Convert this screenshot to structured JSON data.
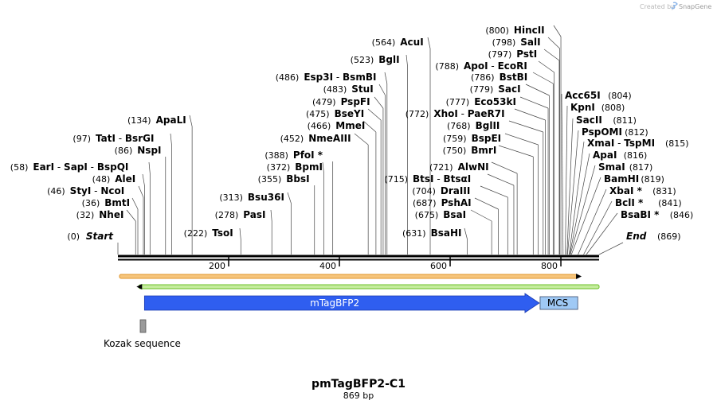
{
  "watermark": {
    "prefix": "Created by",
    "brand": "SnapGene"
  },
  "map": {
    "title": "pmTagBFP2-C1",
    "length_label": "869 bp",
    "length_bp": 869,
    "start_label": "Start",
    "end_label": "End",
    "start_pos": "(0)",
    "end_pos": "(869)",
    "ticks": [
      "200",
      "400",
      "600",
      "800"
    ],
    "tick_values": [
      200,
      400,
      600,
      800
    ]
  },
  "features": {
    "mtagbfp2": {
      "label": "mTagBFP2",
      "start": 48,
      "end": 761,
      "color": "#2f5ef0"
    },
    "mcs": {
      "label": "MCS",
      "start": 761,
      "end": 829,
      "color": "#9fc9f5"
    },
    "kozak": {
      "label": "Kozak sequence",
      "start": 40,
      "end": 52,
      "color": "#9a9a9a"
    },
    "orange_orf": {
      "start": 0,
      "end": 836,
      "color": "#f0a03c"
    },
    "green_orf": {
      "start": 35,
      "end": 869,
      "color": "#6cc02a"
    }
  },
  "sites": [
    {
      "pos": 32,
      "pos_label": "(32)",
      "names": [
        "NheI"
      ]
    },
    {
      "pos": 36,
      "pos_label": "(36)",
      "names": [
        "BmtI"
      ]
    },
    {
      "pos": 46,
      "pos_label": "(46)",
      "names": [
        "StyI",
        "NcoI"
      ]
    },
    {
      "pos": 48,
      "pos_label": "(48)",
      "names": [
        "AleI"
      ]
    },
    {
      "pos": 58,
      "pos_label": "(58)",
      "names": [
        "EarI",
        "SapI",
        "BspQI"
      ]
    },
    {
      "pos": 86,
      "pos_label": "(86)",
      "names": [
        "NspI"
      ]
    },
    {
      "pos": 97,
      "pos_label": "(97)",
      "names": [
        "TatI",
        "BsrGI"
      ]
    },
    {
      "pos": 134,
      "pos_label": "(134)",
      "names": [
        "ApaLI"
      ]
    },
    {
      "pos": 222,
      "pos_label": "(222)",
      "names": [
        "TsoI"
      ]
    },
    {
      "pos": 278,
      "pos_label": "(278)",
      "names": [
        "PasI"
      ]
    },
    {
      "pos": 313,
      "pos_label": "(313)",
      "names": [
        "Bsu36I"
      ]
    },
    {
      "pos": 355,
      "pos_label": "(355)",
      "names": [
        "BbsI"
      ]
    },
    {
      "pos": 372,
      "pos_label": "(372)",
      "names": [
        "BpmI"
      ]
    },
    {
      "pos": 388,
      "pos_label": "(388)",
      "names": [
        "PfoI *"
      ]
    },
    {
      "pos": 452,
      "pos_label": "(452)",
      "names": [
        "NmeAIII"
      ]
    },
    {
      "pos": 466,
      "pos_label": "(466)",
      "names": [
        "MmeI"
      ]
    },
    {
      "pos": 475,
      "pos_label": "(475)",
      "names": [
        "BseYI"
      ]
    },
    {
      "pos": 479,
      "pos_label": "(479)",
      "names": [
        "PspFI"
      ]
    },
    {
      "pos": 483,
      "pos_label": "(483)",
      "names": [
        "StuI"
      ]
    },
    {
      "pos": 486,
      "pos_label": "(486)",
      "names": [
        "Esp3I",
        "BsmBI"
      ]
    },
    {
      "pos": 523,
      "pos_label": "(523)",
      "names": [
        "BglI"
      ]
    },
    {
      "pos": 564,
      "pos_label": "(564)",
      "names": [
        "AcuI"
      ]
    },
    {
      "pos": 631,
      "pos_label": "(631)",
      "names": [
        "BsaHI"
      ]
    },
    {
      "pos": 675,
      "pos_label": "(675)",
      "names": [
        "BsaI"
      ]
    },
    {
      "pos": 687,
      "pos_label": "(687)",
      "names": [
        "PshAI"
      ]
    },
    {
      "pos": 704,
      "pos_label": "(704)",
      "names": [
        "DraIII"
      ]
    },
    {
      "pos": 715,
      "pos_label": "(715)",
      "names": [
        "BtsI",
        "BtsαI"
      ]
    },
    {
      "pos": 721,
      "pos_label": "(721)",
      "names": [
        "AlwNI"
      ]
    },
    {
      "pos": 750,
      "pos_label": "(750)",
      "names": [
        "BmrI"
      ]
    },
    {
      "pos": 759,
      "pos_label": "(759)",
      "names": [
        "BspEI"
      ]
    },
    {
      "pos": 768,
      "pos_label": "(768)",
      "names": [
        "BglII"
      ]
    },
    {
      "pos": 772,
      "pos_label": "(772)",
      "names": [
        "XhoI",
        "PaeR7I"
      ]
    },
    {
      "pos": 777,
      "pos_label": "(777)",
      "names": [
        "Eco53kI"
      ]
    },
    {
      "pos": 779,
      "pos_label": "(779)",
      "names": [
        "SacI"
      ]
    },
    {
      "pos": 786,
      "pos_label": "(786)",
      "names": [
        "BstBI"
      ]
    },
    {
      "pos": 788,
      "pos_label": "(788)",
      "names": [
        "ApoI",
        "EcoRI"
      ]
    },
    {
      "pos": 797,
      "pos_label": "(797)",
      "names": [
        "PstI"
      ]
    },
    {
      "pos": 798,
      "pos_label": "(798)",
      "names": [
        "SalI"
      ]
    },
    {
      "pos": 800,
      "pos_label": "(800)",
      "names": [
        "HincII"
      ]
    },
    {
      "pos": 804,
      "pos_label": "(804)",
      "names": [
        "Acc65I"
      ]
    },
    {
      "pos": 808,
      "pos_label": "(808)",
      "names": [
        "KpnI"
      ]
    },
    {
      "pos": 811,
      "pos_label": "(811)",
      "names": [
        "SacII"
      ]
    },
    {
      "pos": 812,
      "pos_label": "(812)",
      "names": [
        "PspOMI"
      ]
    },
    {
      "pos": 815,
      "pos_label": "(815)",
      "names": [
        "XmaI",
        "TspMI"
      ]
    },
    {
      "pos": 816,
      "pos_label": "(816)",
      "names": [
        "ApaI"
      ]
    },
    {
      "pos": 817,
      "pos_label": "(817)",
      "names": [
        "SmaI"
      ]
    },
    {
      "pos": 819,
      "pos_label": "(819)",
      "names": [
        "BamHI"
      ]
    },
    {
      "pos": 831,
      "pos_label": "(831)",
      "names": [
        "XbaI *"
      ]
    },
    {
      "pos": 841,
      "pos_label": "(841)",
      "names": [
        "BclI *"
      ]
    },
    {
      "pos": 846,
      "pos_label": "(846)",
      "names": [
        "BsaBI *"
      ]
    }
  ]
}
